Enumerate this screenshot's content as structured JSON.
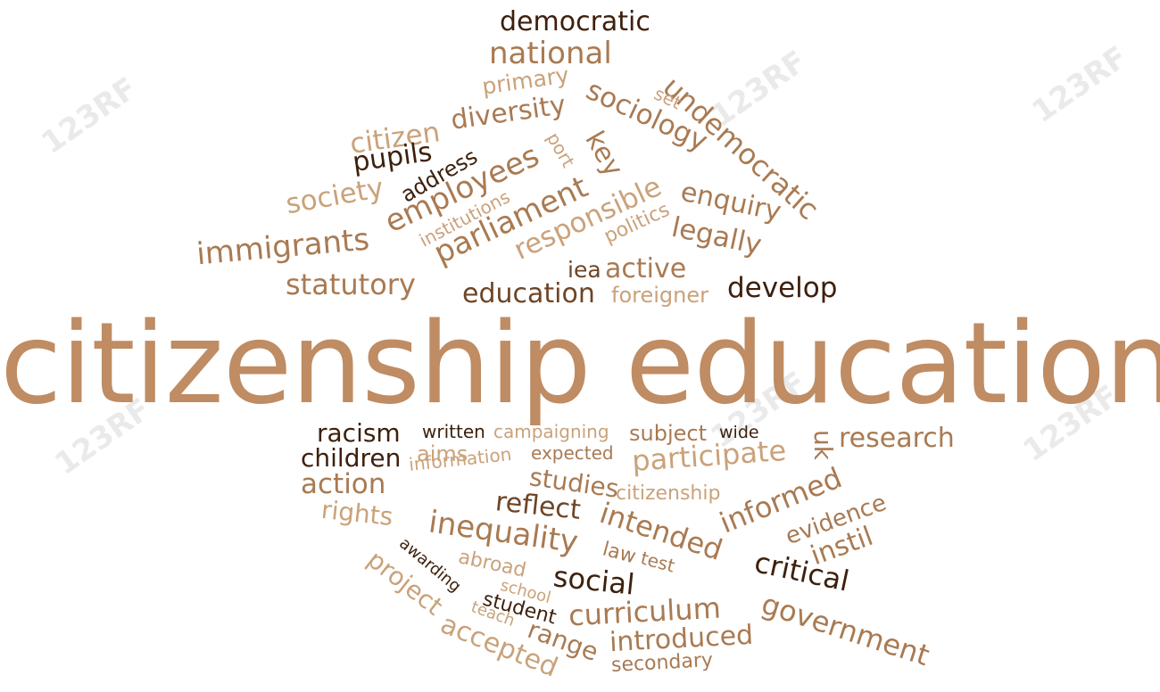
{
  "title": "citizenship education",
  "colors": {
    "background": "#ffffff",
    "title": "#bf8c63",
    "light": "#caa27a",
    "medium": "#a97a52",
    "dark": "#6e4527",
    "darkest": "#3d200d"
  },
  "watermark": "123RF",
  "words": [
    {
      "text": "democratic",
      "tone": "darkest"
    },
    {
      "text": "national",
      "tone": "medium"
    },
    {
      "text": "primary",
      "tone": "light"
    },
    {
      "text": "undemocratic",
      "tone": "medium"
    },
    {
      "text": "set",
      "tone": "light"
    },
    {
      "text": "citizen",
      "tone": "light"
    },
    {
      "text": "diversity",
      "tone": "medium"
    },
    {
      "text": "sociology",
      "tone": "medium"
    },
    {
      "text": "pupils",
      "tone": "darkest"
    },
    {
      "text": "port",
      "tone": "light"
    },
    {
      "text": "key",
      "tone": "medium"
    },
    {
      "text": "address",
      "tone": "darkest"
    },
    {
      "text": "employees",
      "tone": "medium"
    },
    {
      "text": "society",
      "tone": "light"
    },
    {
      "text": "responsible",
      "tone": "light"
    },
    {
      "text": "enquiry",
      "tone": "medium"
    },
    {
      "text": "institutions",
      "tone": "light"
    },
    {
      "text": "parliament",
      "tone": "medium"
    },
    {
      "text": "politics",
      "tone": "light"
    },
    {
      "text": "legally",
      "tone": "medium"
    },
    {
      "text": "immigrants",
      "tone": "medium"
    },
    {
      "text": "statutory",
      "tone": "medium"
    },
    {
      "text": "iea",
      "tone": "dark"
    },
    {
      "text": "active",
      "tone": "medium"
    },
    {
      "text": "education",
      "tone": "dark"
    },
    {
      "text": "foreigner",
      "tone": "light"
    },
    {
      "text": "develop",
      "tone": "darkest"
    },
    {
      "text": "racism",
      "tone": "darkest"
    },
    {
      "text": "written",
      "tone": "darkest"
    },
    {
      "text": "campaigning",
      "tone": "light"
    },
    {
      "text": "subject",
      "tone": "medium"
    },
    {
      "text": "wide",
      "tone": "darkest"
    },
    {
      "text": "uk",
      "tone": "medium"
    },
    {
      "text": "research",
      "tone": "medium"
    },
    {
      "text": "children",
      "tone": "darkest"
    },
    {
      "text": "aims",
      "tone": "light"
    },
    {
      "text": "information",
      "tone": "light"
    },
    {
      "text": "expected",
      "tone": "medium"
    },
    {
      "text": "participate",
      "tone": "light"
    },
    {
      "text": "action",
      "tone": "medium"
    },
    {
      "text": "studies",
      "tone": "medium"
    },
    {
      "text": "citizenship",
      "tone": "light"
    },
    {
      "text": "informed",
      "tone": "medium"
    },
    {
      "text": "evidence",
      "tone": "medium"
    },
    {
      "text": "rights",
      "tone": "light"
    },
    {
      "text": "reflect",
      "tone": "dark"
    },
    {
      "text": "intended",
      "tone": "medium"
    },
    {
      "text": "instil",
      "tone": "medium"
    },
    {
      "text": "inequality",
      "tone": "medium"
    },
    {
      "text": "awarding",
      "tone": "darkest"
    },
    {
      "text": "law",
      "tone": "medium"
    },
    {
      "text": "test",
      "tone": "medium"
    },
    {
      "text": "abroad",
      "tone": "light"
    },
    {
      "text": "social",
      "tone": "darkest"
    },
    {
      "text": "critical",
      "tone": "darkest"
    },
    {
      "text": "project",
      "tone": "light"
    },
    {
      "text": "school",
      "tone": "light"
    },
    {
      "text": "student",
      "tone": "darkest"
    },
    {
      "text": "teach",
      "tone": "light"
    },
    {
      "text": "curriculum",
      "tone": "medium"
    },
    {
      "text": "government",
      "tone": "medium"
    },
    {
      "text": "range",
      "tone": "medium"
    },
    {
      "text": "introduced",
      "tone": "medium"
    },
    {
      "text": "accepted",
      "tone": "light"
    },
    {
      "text": "secondary",
      "tone": "medium"
    }
  ]
}
